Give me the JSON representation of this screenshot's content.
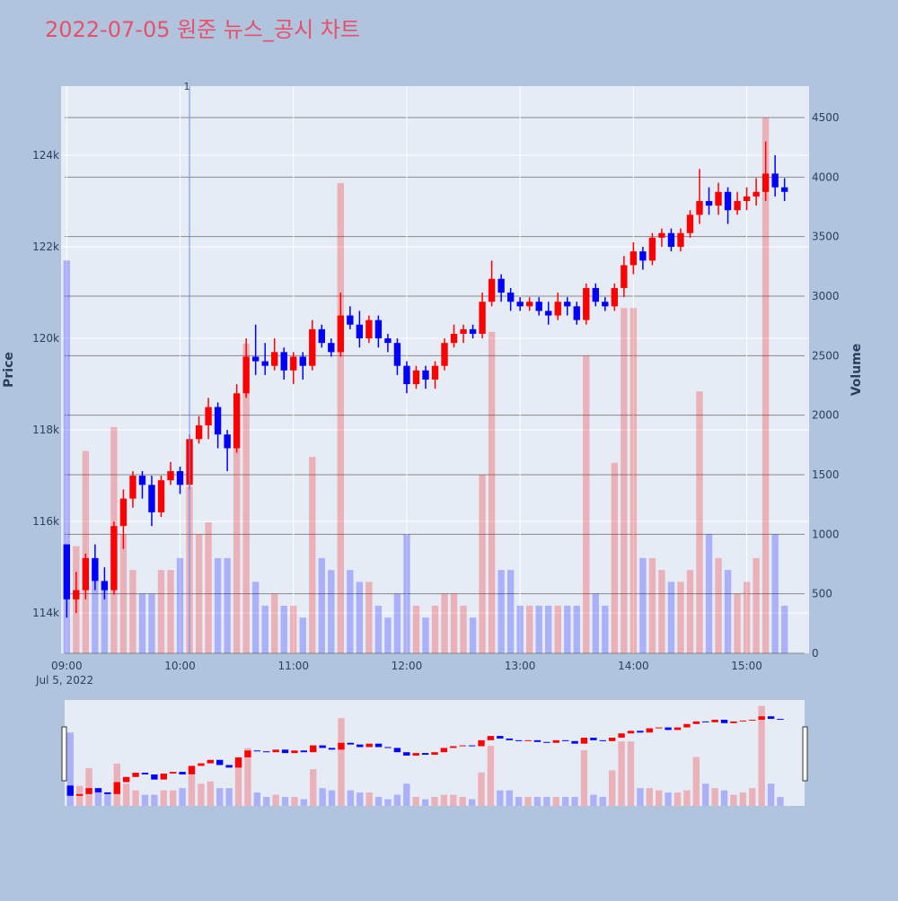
{
  "chart_data": {
    "type": "candlestick",
    "title": "2022-07-05 원준 뉴스_공시 차트",
    "y_label": "Price",
    "y2_label": "Volume",
    "x_date_label": "Jul 5, 2022",
    "increasing_color": "#ff0000",
    "decreasing_color": "#0000ff",
    "xlim": [
      "08:57",
      "15:33"
    ],
    "xticks": [
      "09:00",
      "10:00",
      "11:00",
      "12:00",
      "13:00",
      "14:00",
      "15:00"
    ],
    "ylim": [
      113120,
      125510
    ],
    "yticks": [
      {
        "value": 114000,
        "label": "114k"
      },
      {
        "value": 116000,
        "label": "116k"
      },
      {
        "value": 118000,
        "label": "118k"
      },
      {
        "value": 120000,
        "label": "120k"
      },
      {
        "value": 122000,
        "label": "122k"
      },
      {
        "value": 124000,
        "label": "124k"
      }
    ],
    "y2lim": [
      0,
      4764
    ],
    "y2ticks": [
      0,
      500,
      1000,
      1500,
      2000,
      2500,
      3000,
      3500,
      4000,
      4500
    ],
    "annotations": [
      {
        "text": "1",
        "x": "10:05"
      }
    ],
    "x": [
      "09:00",
      "09:05",
      "09:10",
      "09:15",
      "09:20",
      "09:25",
      "09:30",
      "09:35",
      "09:40",
      "09:45",
      "09:50",
      "09:55",
      "10:00",
      "10:05",
      "10:10",
      "10:15",
      "10:20",
      "10:25",
      "10:30",
      "10:35",
      "10:40",
      "10:45",
      "10:50",
      "10:55",
      "11:00",
      "11:05",
      "11:10",
      "11:15",
      "11:20",
      "11:25",
      "11:30",
      "11:35",
      "11:40",
      "11:45",
      "11:50",
      "11:55",
      "12:00",
      "12:05",
      "12:10",
      "12:15",
      "12:20",
      "12:25",
      "12:30",
      "12:35",
      "12:40",
      "12:45",
      "12:50",
      "12:55",
      "13:00",
      "13:05",
      "13:10",
      "13:15",
      "13:20",
      "13:25",
      "13:30",
      "13:35",
      "13:40",
      "13:45",
      "13:50",
      "13:55",
      "14:00",
      "14:05",
      "14:10",
      "14:15",
      "14:20",
      "14:25",
      "14:30",
      "14:35",
      "14:40",
      "14:45",
      "14:50",
      "14:55",
      "15:00",
      "15:05",
      "15:10",
      "15:15",
      "15:20"
    ],
    "open": [
      115500,
      114300,
      114500,
      115200,
      114700,
      114500,
      115900,
      116500,
      117000,
      116800,
      116200,
      116900,
      117100,
      116800,
      117800,
      118100,
      118500,
      117900,
      117600,
      118800,
      119600,
      119500,
      119400,
      119700,
      119300,
      119600,
      119400,
      120200,
      119900,
      119700,
      120500,
      120300,
      120000,
      120400,
      120000,
      119900,
      119400,
      119000,
      119300,
      119100,
      119400,
      119900,
      120100,
      120200,
      120100,
      120800,
      121300,
      121000,
      120800,
      120700,
      120800,
      120600,
      120500,
      120800,
      120700,
      120400,
      121100,
      120800,
      120700,
      121100,
      121600,
      121900,
      121700,
      122200,
      122300,
      122000,
      122300,
      122700,
      123000,
      122900,
      123200,
      122800,
      123000,
      123100,
      123200,
      123600,
      123300
    ],
    "high": [
      115500,
      114900,
      115300,
      115500,
      115000,
      116000,
      116700,
      117100,
      117100,
      117000,
      117000,
      117300,
      117200,
      117900,
      118300,
      118700,
      118600,
      118000,
      119000,
      120000,
      120300,
      119900,
      120000,
      119800,
      119700,
      119700,
      120400,
      120300,
      120000,
      121000,
      120700,
      120600,
      120500,
      120500,
      120100,
      120000,
      119500,
      119400,
      119400,
      119500,
      120000,
      120300,
      120300,
      120300,
      121000,
      121700,
      121400,
      121100,
      120900,
      120900,
      120900,
      120800,
      121000,
      120900,
      120800,
      121200,
      121200,
      120900,
      121200,
      121800,
      122100,
      122000,
      122300,
      122400,
      122400,
      122400,
      122800,
      123700,
      123300,
      123400,
      123300,
      123200,
      123300,
      123500,
      124300,
      124000,
      123500
    ],
    "low": [
      113900,
      114000,
      114300,
      114500,
      114300,
      114400,
      115400,
      116300,
      116500,
      115900,
      116100,
      116800,
      116600,
      116700,
      117700,
      117800,
      117600,
      117100,
      117500,
      118700,
      119200,
      119200,
      119300,
      119100,
      119000,
      119100,
      119300,
      119800,
      119600,
      119600,
      120200,
      119800,
      119900,
      119800,
      119700,
      119200,
      118800,
      118900,
      118900,
      118900,
      119300,
      119800,
      119900,
      120000,
      120000,
      120700,
      120800,
      120600,
      120600,
      120600,
      120500,
      120300,
      120400,
      120500,
      120300,
      120300,
      120700,
      120600,
      120600,
      120900,
      121400,
      121500,
      121600,
      122000,
      121900,
      121900,
      122200,
      122500,
      122700,
      122700,
      122500,
      122700,
      122800,
      122900,
      123000,
      123100,
      123000
    ],
    "close": [
      114300,
      114500,
      115200,
      114700,
      114500,
      115900,
      116500,
      117000,
      116800,
      116200,
      116900,
      117100,
      116800,
      117800,
      118100,
      118500,
      117900,
      117600,
      118800,
      119600,
      119500,
      119400,
      119700,
      119300,
      119600,
      119400,
      120200,
      119900,
      119700,
      120500,
      120300,
      120000,
      120400,
      120000,
      119900,
      119400,
      119000,
      119300,
      119100,
      119400,
      119900,
      120100,
      120200,
      120100,
      120800,
      121300,
      121000,
      120800,
      120700,
      120800,
      120600,
      120500,
      120800,
      120700,
      120400,
      121100,
      120800,
      120700,
      121100,
      121600,
      121900,
      121700,
      122200,
      122300,
      122000,
      122300,
      122700,
      123000,
      122900,
      123200,
      122800,
      123000,
      123100,
      123200,
      123600,
      123300,
      123200
    ],
    "volume": [
      3300,
      900,
      1700,
      700,
      600,
      1900,
      1000,
      700,
      500,
      500,
      700,
      700,
      800,
      1400,
      1000,
      1100,
      800,
      800,
      2000,
      2600,
      600,
      400,
      500,
      400,
      400,
      300,
      1650,
      800,
      700,
      3950,
      700,
      600,
      600,
      400,
      300,
      500,
      1000,
      400,
      300,
      400,
      500,
      500,
      400,
      300,
      1500,
      2700,
      700,
      700,
      400,
      400,
      400,
      400,
      400,
      400,
      400,
      2500,
      500,
      400,
      1600,
      2900,
      2900,
      800,
      800,
      700,
      600,
      600,
      700,
      2200,
      1000,
      800,
      700,
      500,
      600,
      800,
      4500,
      1000,
      400
    ]
  }
}
